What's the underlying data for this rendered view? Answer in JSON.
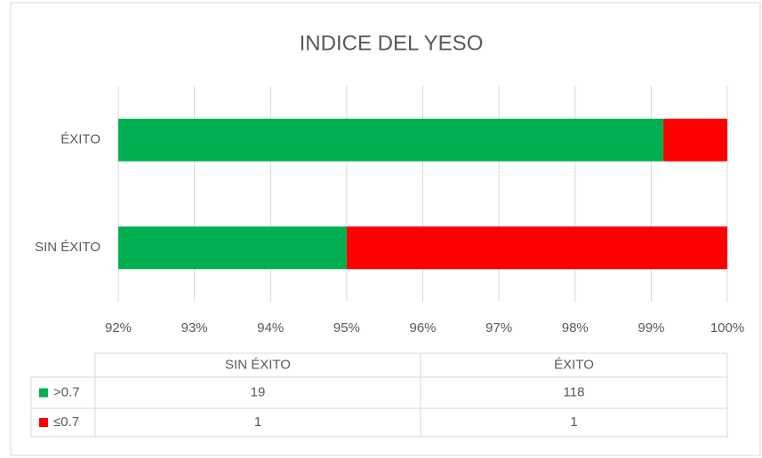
{
  "chart_data": {
    "type": "stacked100_hbar",
    "title": "INDICE DEL YESO",
    "categories": [
      "SIN ÉXITO",
      "ÉXITO"
    ],
    "series": [
      {
        "name": ">0.7",
        "color": "#00b050",
        "values": [
          19,
          118
        ]
      },
      {
        "name": "≤0.7",
        "color": "#ff0000",
        "values": [
          1,
          1
        ]
      }
    ],
    "xlim": [
      92,
      100
    ],
    "xticks": [
      {
        "value": 92,
        "label": "92%"
      },
      {
        "value": 93,
        "label": "93%"
      },
      {
        "value": 94,
        "label": "94%"
      },
      {
        "value": 95,
        "label": "95%"
      },
      {
        "value": 96,
        "label": "96%"
      },
      {
        "value": 97,
        "label": "97%"
      },
      {
        "value": 98,
        "label": "98%"
      },
      {
        "value": 99,
        "label": "99%"
      },
      {
        "value": 100,
        "label": "100%"
      }
    ],
    "grid": true,
    "data_table": true
  }
}
